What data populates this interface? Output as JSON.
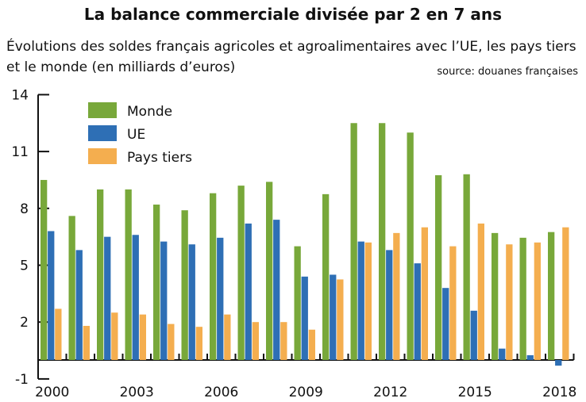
{
  "chart_data": {
    "type": "bar",
    "title": "La balance commerciale divisée par 2 en 7 ans",
    "subtitle": "Évolutions des soldes français agricoles et agroalimentaires avec l’UE, les pays tiers et le monde (en milliards d’euros)",
    "source": "source: douanes françaises",
    "categories": [
      "2000",
      "2001",
      "2002",
      "2003",
      "2004",
      "2005",
      "2006",
      "2007",
      "2008",
      "2009",
      "2010",
      "2011",
      "2012",
      "2013",
      "2014",
      "2015",
      "2016",
      "2017",
      "2018"
    ],
    "x_tick_labels": [
      "2000",
      "2003",
      "2006",
      "2009",
      "2012",
      "2015",
      "2018"
    ],
    "y_ticks": [
      14,
      11,
      8,
      5,
      2,
      -1
    ],
    "ylim": [
      -1,
      14
    ],
    "grid": false,
    "legend_position": "top-left",
    "series": [
      {
        "name": "Monde",
        "color": "#78a83a",
        "values": [
          9.5,
          7.6,
          9.0,
          9.0,
          8.2,
          7.9,
          8.8,
          9.2,
          9.4,
          6.0,
          8.75,
          12.5,
          12.5,
          12.0,
          9.75,
          9.8,
          6.7,
          6.45,
          6.75
        ]
      },
      {
        "name": "UE",
        "color": "#2e6fb5",
        "values": [
          6.8,
          5.8,
          6.5,
          6.6,
          6.25,
          6.1,
          6.45,
          7.2,
          7.4,
          4.4,
          4.5,
          6.25,
          5.8,
          5.1,
          3.8,
          2.6,
          0.6,
          0.25,
          -0.3
        ]
      },
      {
        "name": "Pays tiers",
        "color": "#f4ae4f",
        "values": [
          2.7,
          1.8,
          2.5,
          2.4,
          1.9,
          1.75,
          2.4,
          2.0,
          2.0,
          1.6,
          4.25,
          6.2,
          6.7,
          7.0,
          6.0,
          7.2,
          6.1,
          6.2,
          7.0
        ]
      }
    ]
  }
}
